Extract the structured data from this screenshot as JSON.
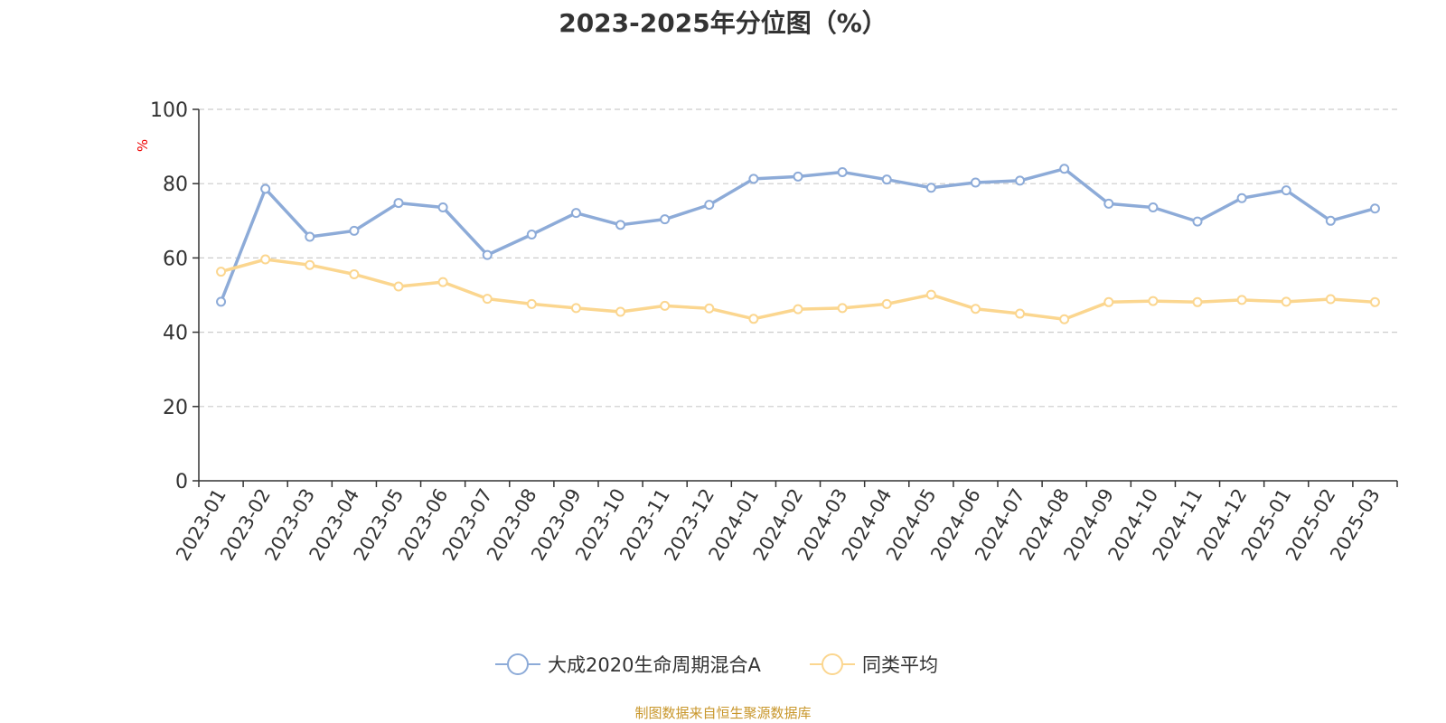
{
  "title": "2023-2025年分位图（%）",
  "source": "制图数据来自恒生聚源数据库",
  "chart_data": {
    "type": "line",
    "title": "2023-2025年分位图（%）",
    "xlabel": "",
    "ylabel": "%",
    "ylim": [
      0,
      100
    ],
    "yticks": [
      0,
      20,
      40,
      60,
      80,
      100
    ],
    "grid": true,
    "legend_position": "bottom",
    "categories": [
      "2023-01",
      "2023-02",
      "2023-03",
      "2023-04",
      "2023-05",
      "2023-06",
      "2023-07",
      "2023-08",
      "2023-09",
      "2023-10",
      "2023-11",
      "2023-12",
      "2024-01",
      "2024-02",
      "2024-03",
      "2024-04",
      "2024-05",
      "2024-06",
      "2024-07",
      "2024-08",
      "2024-09",
      "2024-10",
      "2024-11",
      "2024-12",
      "2025-01",
      "2025-02",
      "2025-03"
    ],
    "series": [
      {
        "name": "大成2020生命周期混合A",
        "color": "#8dabd8",
        "values": [
          48.2,
          78.6,
          65.7,
          67.3,
          74.8,
          73.6,
          60.8,
          66.3,
          72.1,
          68.9,
          70.4,
          74.3,
          81.3,
          81.9,
          83.1,
          81.1,
          78.9,
          80.3,
          80.8,
          84.0,
          74.6,
          73.6,
          69.8,
          76.1,
          78.2,
          70.0,
          73.3
        ]
      },
      {
        "name": "同类平均",
        "color": "#fbd68f",
        "values": [
          56.3,
          59.6,
          58.1,
          55.6,
          52.3,
          53.5,
          49.0,
          47.6,
          46.5,
          45.5,
          47.1,
          46.4,
          43.6,
          46.2,
          46.5,
          47.6,
          50.1,
          46.3,
          45.0,
          43.5,
          48.1,
          48.4,
          48.1,
          48.7,
          48.2,
          48.9,
          48.1
        ]
      }
    ]
  },
  "colors": {
    "axis": "#333333",
    "grid": "#cccccc",
    "ylabel_color": "#ee0000",
    "source_color": "#c8962a"
  }
}
